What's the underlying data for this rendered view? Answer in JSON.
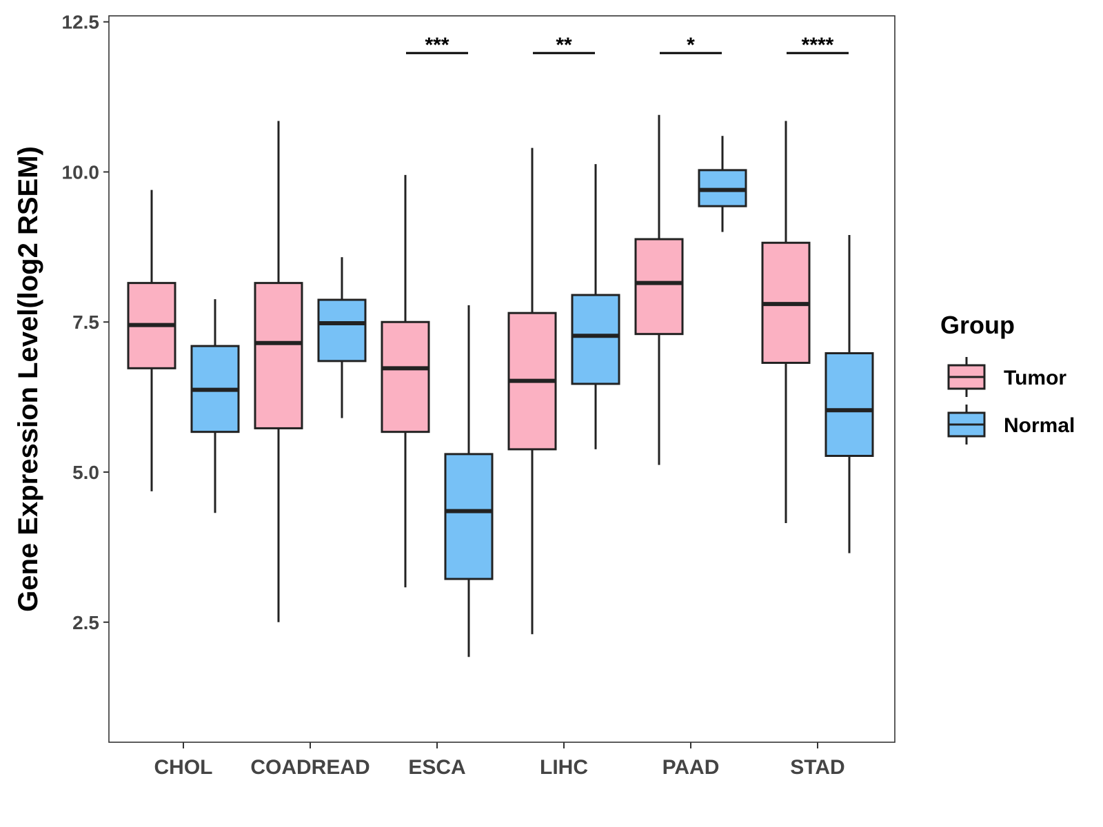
{
  "chart_data": {
    "type": "boxplot",
    "title": "",
    "xlabel": "",
    "ylabel": "Gene Expression Level(log2 RSEM)",
    "ylim": [
      0.5,
      12.6
    ],
    "yticks": [
      2.5,
      5.0,
      7.5,
      10.0,
      12.5
    ],
    "ytick_labels": [
      "2.5",
      "5.0",
      "7.5",
      "10.0",
      "12.5"
    ],
    "grid": false,
    "legend_position": "right",
    "legend_title": "Group",
    "categories": [
      "CHOL",
      "COADREAD",
      "ESCA",
      "LIHC",
      "PAAD",
      "STAD"
    ],
    "series": [
      {
        "name": "Tumor",
        "color": "#FBB1C2",
        "boxes": [
          {
            "whisker_low": 4.68,
            "q1": 6.73,
            "median": 7.45,
            "q3": 8.15,
            "whisker_high": 9.7
          },
          {
            "whisker_low": 2.5,
            "q1": 5.73,
            "median": 7.15,
            "q3": 8.15,
            "whisker_high": 10.85
          },
          {
            "whisker_low": 3.08,
            "q1": 5.67,
            "median": 6.73,
            "q3": 7.5,
            "whisker_high": 9.95
          },
          {
            "whisker_low": 2.3,
            "q1": 5.38,
            "median": 6.52,
            "q3": 7.65,
            "whisker_high": 10.4
          },
          {
            "whisker_low": 5.12,
            "q1": 7.3,
            "median": 8.15,
            "q3": 8.88,
            "whisker_high": 10.95
          },
          {
            "whisker_low": 4.15,
            "q1": 6.82,
            "median": 7.8,
            "q3": 8.82,
            "whisker_high": 10.85
          }
        ]
      },
      {
        "name": "Normal",
        "color": "#77C1F6",
        "boxes": [
          {
            "whisker_low": 4.32,
            "q1": 5.67,
            "median": 6.37,
            "q3": 7.1,
            "whisker_high": 7.88
          },
          {
            "whisker_low": 5.9,
            "q1": 6.85,
            "median": 7.48,
            "q3": 7.87,
            "whisker_high": 8.58
          },
          {
            "whisker_low": 1.92,
            "q1": 3.22,
            "median": 4.35,
            "q3": 5.3,
            "whisker_high": 7.78
          },
          {
            "whisker_low": 5.38,
            "q1": 6.47,
            "median": 7.27,
            "q3": 7.95,
            "whisker_high": 10.13
          },
          {
            "whisker_low": 9.0,
            "q1": 9.43,
            "median": 9.7,
            "q3": 10.03,
            "whisker_high": 10.6
          },
          {
            "whisker_low": 3.65,
            "q1": 5.27,
            "median": 6.03,
            "q3": 6.98,
            "whisker_high": 8.95
          }
        ]
      }
    ],
    "annotations": [
      {
        "category": "ESCA",
        "label": "***",
        "y": 11.98
      },
      {
        "category": "LIHC",
        "label": "**",
        "y": 11.98
      },
      {
        "category": "PAAD",
        "label": "*",
        "y": 11.98
      },
      {
        "category": "STAD",
        "label": "****",
        "y": 11.98
      }
    ]
  }
}
